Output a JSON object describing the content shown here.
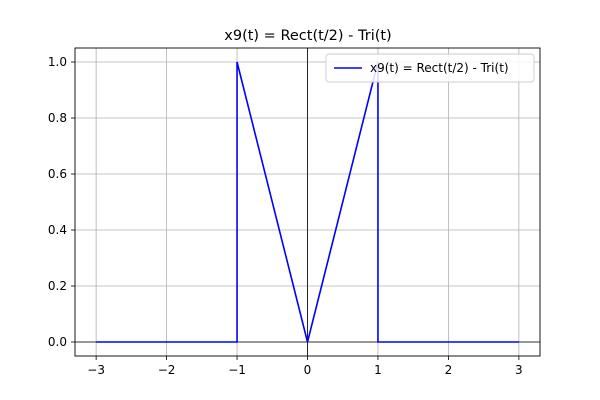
{
  "chart_data": {
    "type": "line",
    "title": "x9(t) = Rect(t/2) - Tri(t)",
    "xlabel": "",
    "ylabel": "",
    "xlim": [
      -3.3,
      3.3
    ],
    "ylim": [
      -0.05,
      1.05
    ],
    "x_ticks": [
      -3,
      -2,
      -1,
      0,
      1,
      2,
      3
    ],
    "x_tick_labels": [
      "−3",
      "−2",
      "−1",
      "0",
      "1",
      "2",
      "3"
    ],
    "y_ticks": [
      0.0,
      0.2,
      0.4,
      0.6,
      0.8,
      1.0
    ],
    "y_tick_labels": [
      "0.0",
      "0.2",
      "0.4",
      "0.6",
      "0.8",
      "1.0"
    ],
    "grid": true,
    "axis_lines_at_zero": true,
    "legend_position": "top-right",
    "series": [
      {
        "name": "x9(t) = Rect(t/2) - Tri(t)",
        "color": "#0000ff",
        "x": [
          -3,
          -1,
          -1,
          0,
          1,
          1,
          3
        ],
        "y": [
          0,
          0,
          1,
          0,
          1,
          0,
          0
        ]
      }
    ]
  }
}
